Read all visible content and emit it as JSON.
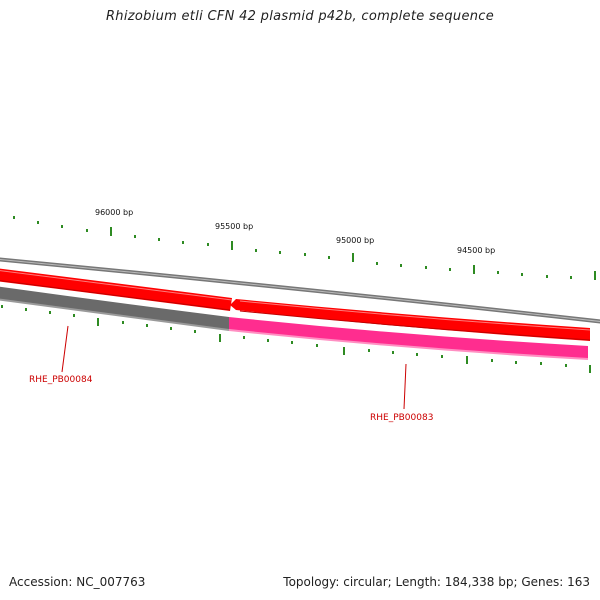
{
  "title": "Rhizobium etli CFN 42 plasmid p42b, complete sequence",
  "footer": {
    "accession": "Accession: NC_007763",
    "summary": "Topology: circular; Length: 184,338 bp; Genes: 163"
  },
  "ruler": {
    "labels": [
      "96000 bp",
      "95500 bp",
      "95000 bp",
      "94500 bp"
    ]
  },
  "genes": [
    {
      "label": "RHE_PB00084",
      "strand": "reverse"
    },
    {
      "label": "RHE_PB00083",
      "strand": "reverse"
    }
  ],
  "colors": {
    "backbone": "#888888",
    "cds": "#ff0000",
    "gene_gray": "#666666",
    "gene_magenta": "#ff1493",
    "tick": "#2e8b22",
    "gene_label": "#cc0000"
  }
}
